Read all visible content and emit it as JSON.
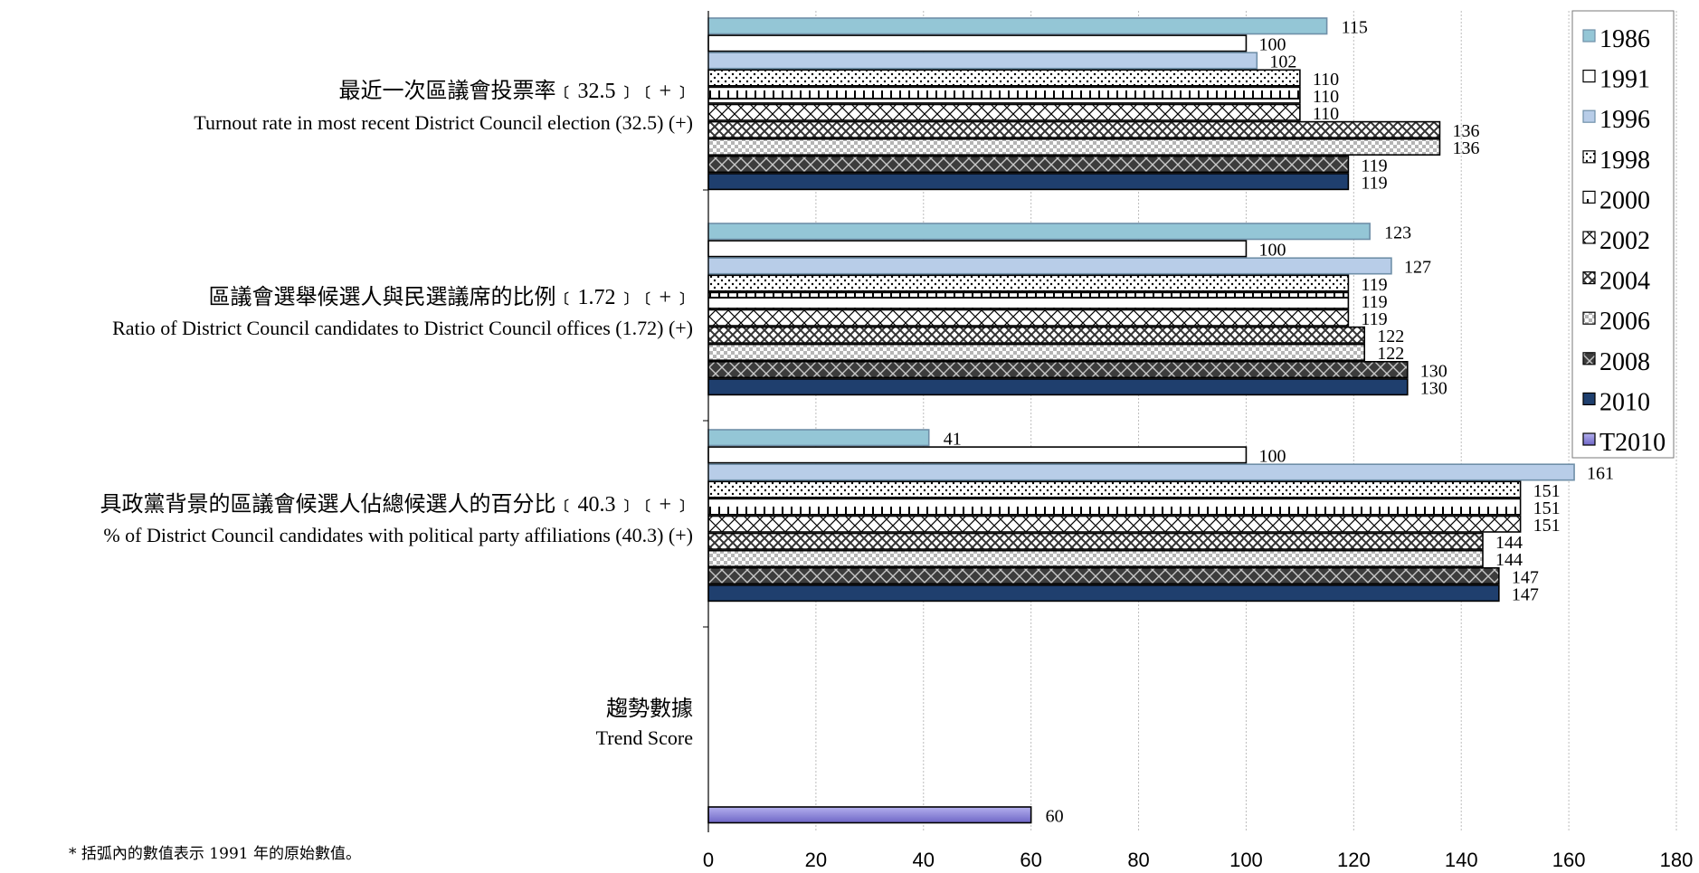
{
  "chart_data": {
    "type": "bar",
    "orientation": "horizontal",
    "categories": [
      {
        "label_cn": "最近一次區議會投票率﹝32.5﹞﹝+﹞",
        "label_en": "Turnout rate in most recent District Council election (32.5) (+)"
      },
      {
        "label_cn": "區議會選舉候選人與民選議席的比例﹝1.72﹞﹝+﹞",
        "label_en": "Ratio of District Council candidates to District Council offices (1.72) (+)"
      },
      {
        "label_cn": "具政黨背景的區議會候選人佔總候選人的百分比﹝40.3﹞﹝+﹞",
        "label_en": "% of District Council candidates with political party affiliations (40.3) (+)"
      },
      {
        "label_cn": "趨勢數據",
        "label_en": "Trend Score"
      }
    ],
    "series": [
      {
        "name": "1986",
        "color": "#94c6d6",
        "pattern": "solid",
        "values": [
          115,
          123,
          41,
          null
        ]
      },
      {
        "name": "1991",
        "color": "#ffffff",
        "pattern": "solid",
        "values": [
          100,
          100,
          100,
          null
        ]
      },
      {
        "name": "1996",
        "color": "#b8cde8",
        "pattern": "solid",
        "values": [
          102,
          127,
          161,
          null
        ]
      },
      {
        "name": "1998",
        "color": "#ffffff",
        "pattern": "dots",
        "values": [
          110,
          119,
          151,
          null
        ]
      },
      {
        "name": "2000",
        "color": "#ffffff",
        "pattern": "ruler",
        "values": [
          110,
          119,
          151,
          null
        ]
      },
      {
        "name": "2002",
        "color": "#ffffff",
        "pattern": "crosshatch",
        "values": [
          110,
          119,
          151,
          null
        ]
      },
      {
        "name": "2004",
        "color": "#ffffff",
        "pattern": "weave",
        "values": [
          136,
          122,
          144,
          null
        ]
      },
      {
        "name": "2006",
        "color": "#9e9e9e",
        "pattern": "checker",
        "values": [
          136,
          122,
          144,
          null
        ]
      },
      {
        "name": "2008",
        "color": "#3c3c3c",
        "pattern": "darkweave",
        "values": [
          119,
          130,
          147,
          null
        ]
      },
      {
        "name": "2010",
        "color": "#1f3f6e",
        "pattern": "solid",
        "values": [
          119,
          130,
          147,
          null
        ]
      },
      {
        "name": "T2010",
        "color": "#8c86d8",
        "pattern": "gradient",
        "values": [
          null,
          null,
          null,
          60
        ]
      }
    ],
    "x_axis": {
      "min": 0,
      "max": 180,
      "ticks": [
        "0",
        "20",
        "40",
        "60",
        "80",
        "100",
        "120",
        "140",
        "160",
        "180"
      ]
    },
    "grid": "vertical, dotted",
    "legend": "top-right"
  },
  "notes": [
    "* 括弧內的數值表示 1991 年的原始數值。"
  ]
}
